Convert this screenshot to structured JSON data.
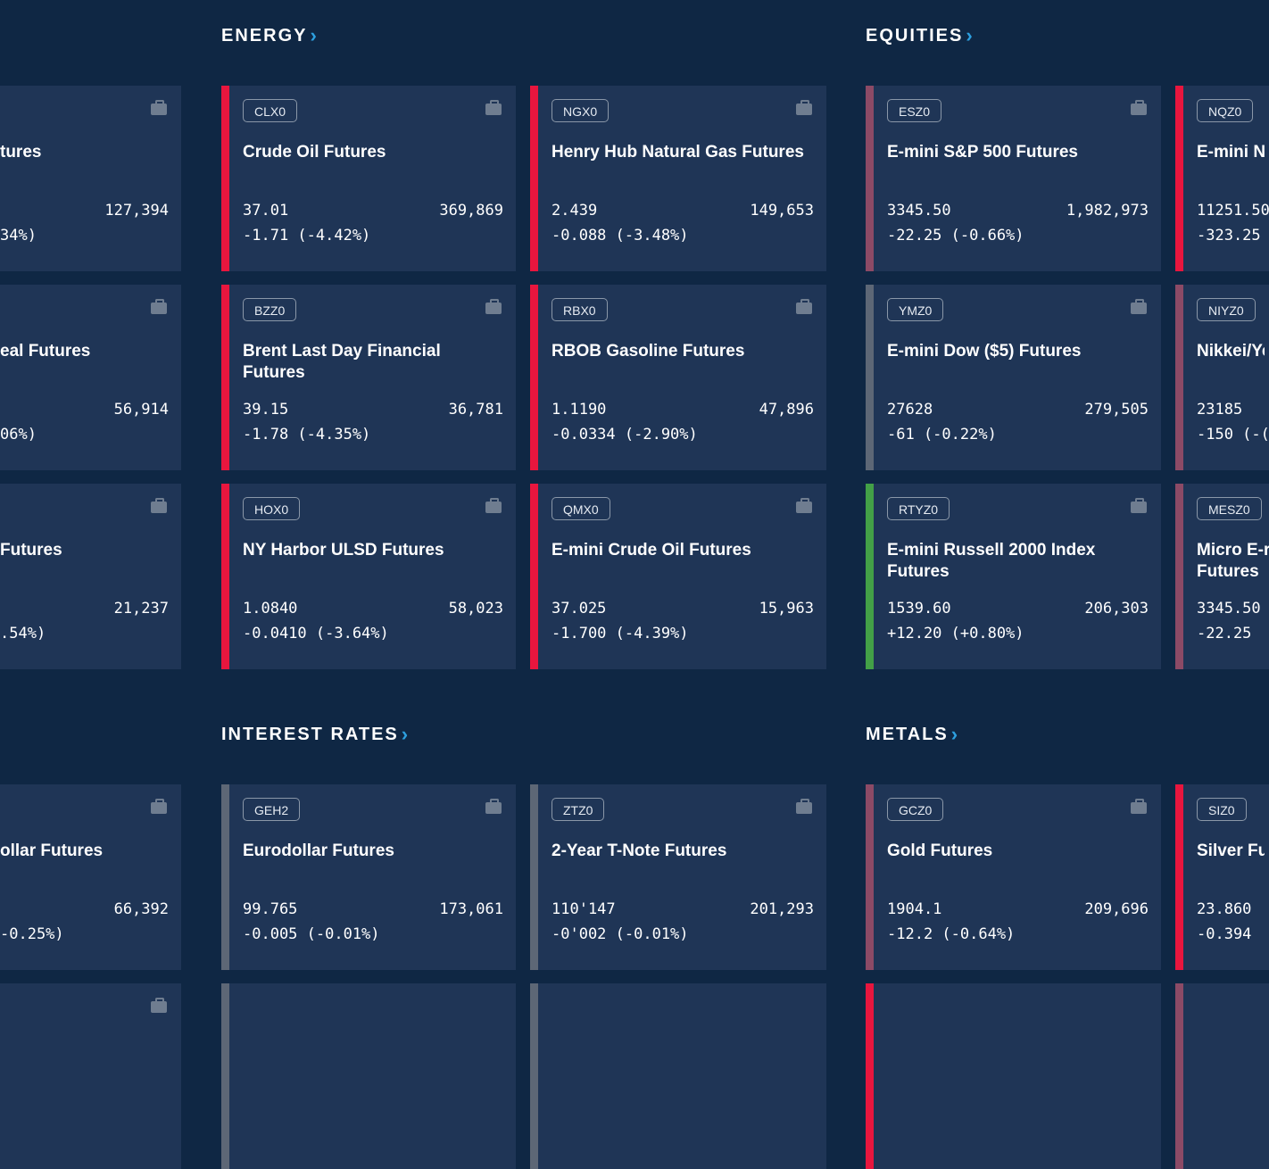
{
  "sections": {
    "energy": {
      "title": "ENERGY"
    },
    "equities": {
      "title": "EQUITIES"
    },
    "interest_rates": {
      "title": "INTEREST RATES"
    },
    "metals": {
      "title": "METALS"
    }
  },
  "colors": {
    "down": "#e8163e",
    "neutral_gray": "#5d6776",
    "muted_red": "#8c4a66",
    "up": "#43a047",
    "background": "#0f2744",
    "card": "#1f3556",
    "accent": "#2da0e0"
  },
  "left_cards": [
    {
      "name": "tures",
      "volume": "127,394",
      "change": "34%)"
    },
    {
      "name": "eal Futures",
      "volume": "56,914",
      "change": "06%)"
    },
    {
      "name": "Futures",
      "volume": "21,237",
      "change": ".54%)"
    },
    {
      "name": "ollar Futures",
      "volume": "66,392",
      "change": "-0.25%)"
    }
  ],
  "energy_cards": [
    {
      "symbol": "CLX0",
      "name": "Crude Oil Futures",
      "price": "37.01",
      "change": "-1.71 (-4.42%)",
      "volume": "369,869"
    },
    {
      "symbol": "NGX0",
      "name": "Henry Hub Natural Gas Futures",
      "price": "2.439",
      "change": "-0.088 (-3.48%)",
      "volume": "149,653"
    },
    {
      "symbol": "BZZ0",
      "name": "Brent Last Day Financial Futures",
      "price": "39.15",
      "change": "-1.78 (-4.35%)",
      "volume": "36,781"
    },
    {
      "symbol": "RBX0",
      "name": "RBOB Gasoline Futures",
      "price": "1.1190",
      "change": "-0.0334 (-2.90%)",
      "volume": "47,896"
    },
    {
      "symbol": "HOX0",
      "name": "NY Harbor ULSD Futures",
      "price": "1.0840",
      "change": "-0.0410 (-3.64%)",
      "volume": "58,023"
    },
    {
      "symbol": "QMX0",
      "name": "E-mini Crude Oil Futures",
      "price": "37.025",
      "change": "-1.700 (-4.39%)",
      "volume": "15,963"
    }
  ],
  "equities_cards": [
    {
      "symbol": "ESZ0",
      "name": "E-mini S&P 500 Futures",
      "price": "3345.50",
      "change": "-22.25 (-0.66%)",
      "volume": "1,982,973"
    },
    {
      "symbol": "NQZ0",
      "name": "E-mini N",
      "price": "11251.50",
      "change": "-323.25"
    },
    {
      "symbol": "YMZ0",
      "name": "E-mini Dow ($5) Futures",
      "price": "27628",
      "change": "-61 (-0.22%)",
      "volume": "279,505"
    },
    {
      "symbol": "NIYZ0",
      "name": "Nikkei/Ye",
      "price": "23185",
      "change": "-150 (-("
    },
    {
      "symbol": "RTYZ0",
      "name": "E-mini  Russell 2000 Index Futures",
      "price": "1539.60",
      "change": "+12.20 (+0.80%)",
      "volume": "206,303"
    },
    {
      "symbol": "MESZ0",
      "name": "Micro E-r Futures",
      "price": "3345.50",
      "change": "-22.25"
    }
  ],
  "rates_cards": [
    {
      "symbol": "GEH2",
      "name": "Eurodollar Futures",
      "price": "99.765",
      "change": "-0.005 (-0.01%)",
      "volume": "173,061"
    },
    {
      "symbol": "ZTZ0",
      "name": "2-Year T-Note Futures",
      "price": "110'147",
      "change": "-0'002 (-0.01%)",
      "volume": "201,293"
    }
  ],
  "metals_cards": [
    {
      "symbol": "GCZ0",
      "name": "Gold Futures",
      "price": "1904.1",
      "change": "-12.2 (-0.64%)",
      "volume": "209,696"
    },
    {
      "symbol": "SIZ0",
      "name": "Silver Fut",
      "price": "23.860",
      "change": "-0.394"
    }
  ]
}
